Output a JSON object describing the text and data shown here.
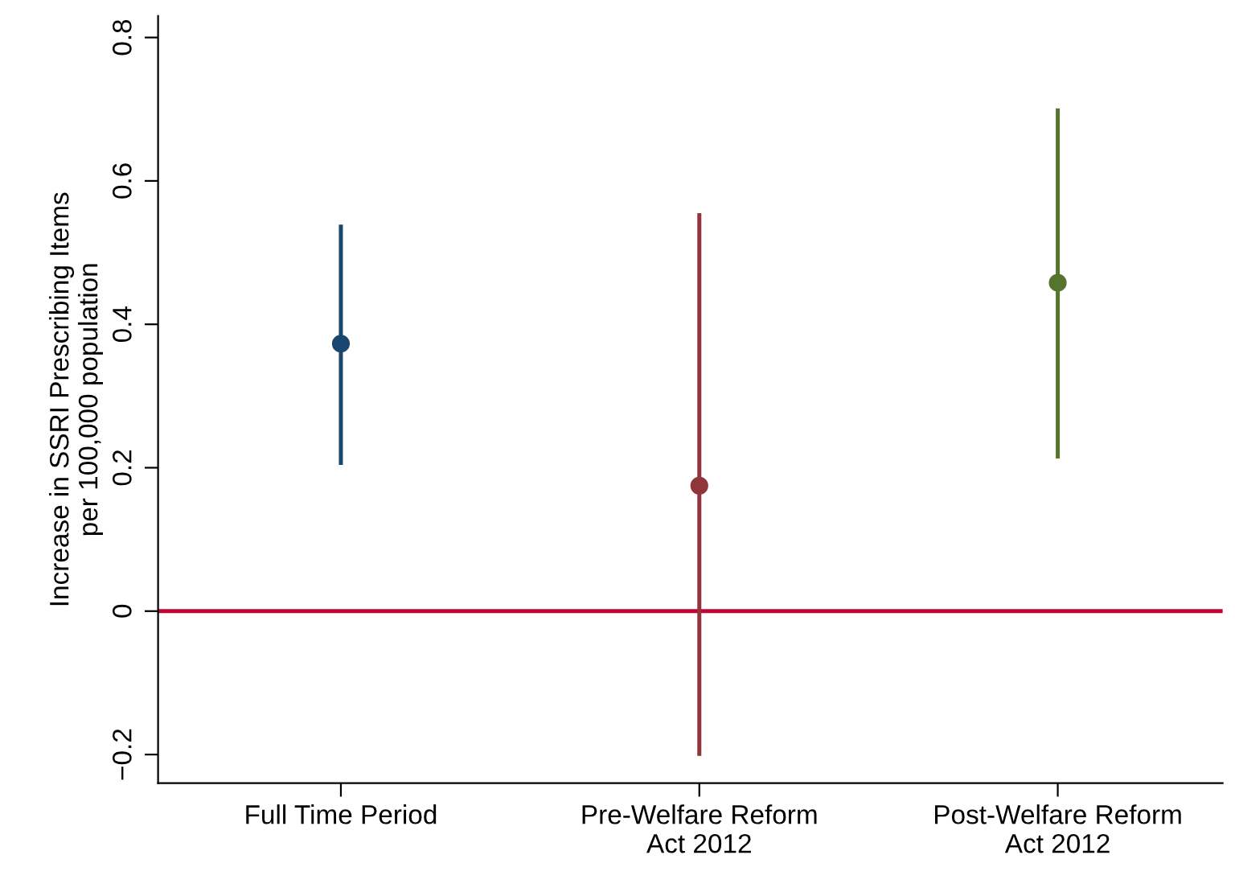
{
  "chart_data": {
    "type": "scatter",
    "ylabel": "Increase in SSRI Prescribing Items\nper 100,000 population",
    "categories": [
      "Full Time Period",
      "Pre-Welfare Reform\nAct 2012",
      "Post-Welfare Reform\nAct 2012"
    ],
    "values": [
      0.373,
      0.175,
      0.458
    ],
    "errors": [
      [
        0.204,
        0.539
      ],
      [
        -0.202,
        0.555
      ],
      [
        0.213,
        0.701
      ]
    ],
    "colors": [
      "#1a476f",
      "#90353b",
      "#55752f"
    ],
    "marker": "circle",
    "ylim": [
      -0.24,
      0.83
    ],
    "yticks": [
      {
        "value": -0.2,
        "label": "−0.2"
      },
      0,
      0.2,
      0.4,
      0.6,
      0.8
    ],
    "ref_lines": [
      {
        "axis": "y",
        "value": 0,
        "color": "#c10534"
      }
    ],
    "grid": false,
    "legend": false
  }
}
